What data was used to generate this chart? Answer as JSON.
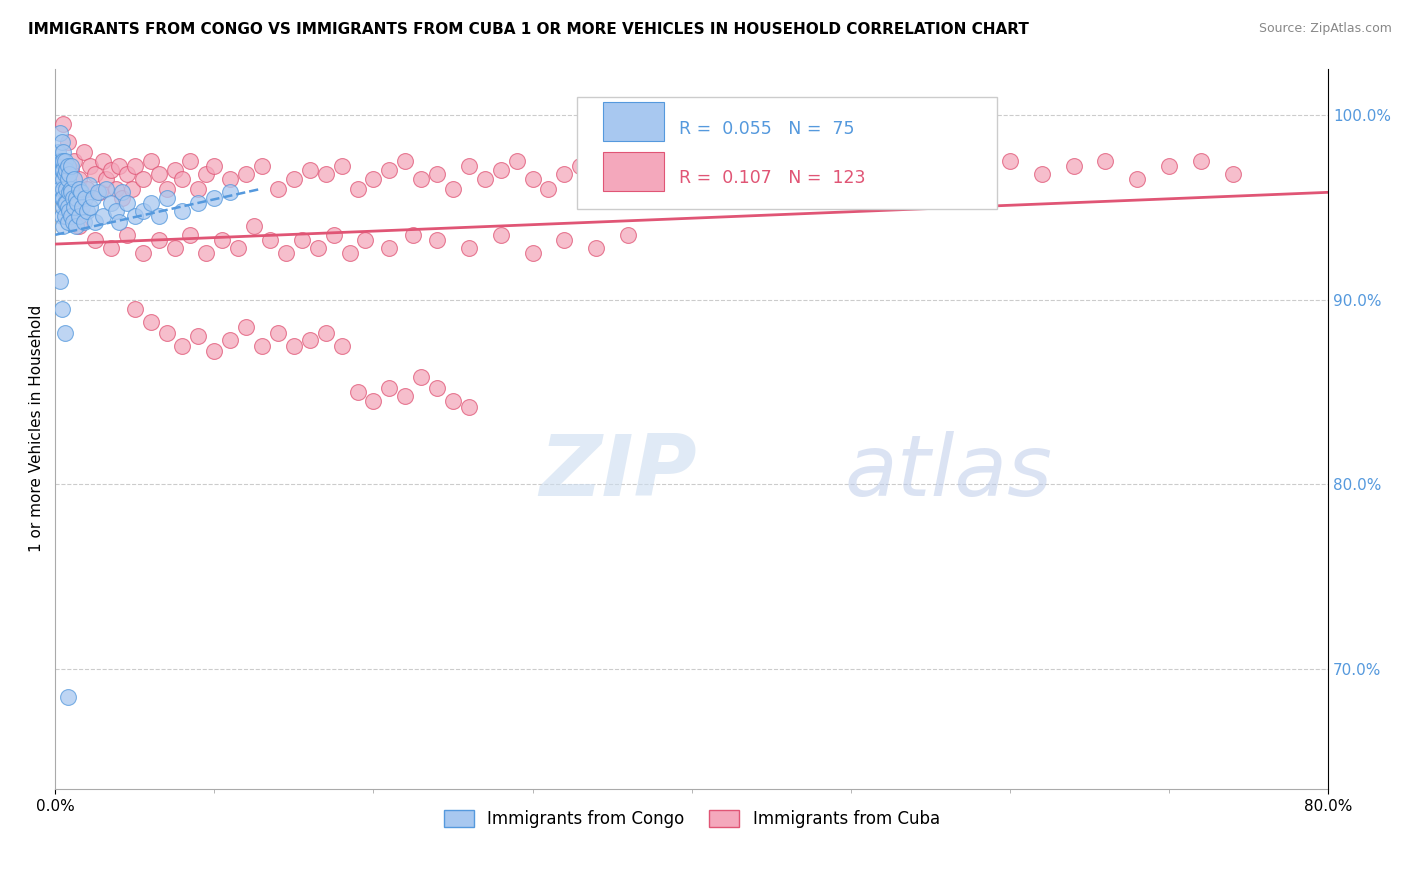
{
  "title": "IMMIGRANTS FROM CONGO VS IMMIGRANTS FROM CUBA 1 OR MORE VEHICLES IN HOUSEHOLD CORRELATION CHART",
  "source": "Source: ZipAtlas.com",
  "ylabel": "1 or more Vehicles in Household",
  "xlim": [
    0.0,
    0.8
  ],
  "ylim": [
    0.635,
    1.025
  ],
  "y_ticks_right": [
    0.7,
    0.8,
    0.9,
    1.0
  ],
  "y_tick_labels_right": [
    "70.0%",
    "80.0%",
    "90.0%",
    "100.0%"
  ],
  "grid_color": "#cccccc",
  "background_color": "#ffffff",
  "legend_blue_label": "Immigrants from Congo",
  "legend_pink_label": "Immigrants from Cuba",
  "R_blue": 0.055,
  "N_blue": 75,
  "R_pink": 0.107,
  "N_pink": 123,
  "blue_color": "#a8c8f0",
  "pink_color": "#f4a8bc",
  "blue_line_color": "#5599dd",
  "pink_line_color": "#e05575",
  "watermark_zip": "ZIP",
  "watermark_atlas": "atlas",
  "congo_x": [
    0.002,
    0.002,
    0.003,
    0.003,
    0.003,
    0.004,
    0.004,
    0.004,
    0.004,
    0.004,
    0.005,
    0.005,
    0.005,
    0.005,
    0.005,
    0.005,
    0.005,
    0.005,
    0.006,
    0.006,
    0.006,
    0.006,
    0.007,
    0.007,
    0.007,
    0.008,
    0.008,
    0.008,
    0.008,
    0.009,
    0.009,
    0.009,
    0.01,
    0.01,
    0.01,
    0.01,
    0.011,
    0.011,
    0.012,
    0.012,
    0.013,
    0.013,
    0.014,
    0.015,
    0.015,
    0.016,
    0.017,
    0.018,
    0.019,
    0.02,
    0.021,
    0.022,
    0.024,
    0.025,
    0.027,
    0.03,
    0.032,
    0.035,
    0.038,
    0.04,
    0.042,
    0.045,
    0.05,
    0.055,
    0.06,
    0.065,
    0.07,
    0.08,
    0.09,
    0.1,
    0.11,
    0.003,
    0.004,
    0.006,
    0.008
  ],
  "congo_y": [
    0.98,
    0.965,
    0.975,
    0.96,
    0.99,
    0.97,
    0.955,
    0.985,
    0.945,
    0.975,
    0.98,
    0.965,
    0.95,
    0.975,
    0.96,
    0.94,
    0.97,
    0.955,
    0.968,
    0.952,
    0.945,
    0.975,
    0.96,
    0.97,
    0.952,
    0.965,
    0.95,
    0.972,
    0.942,
    0.958,
    0.948,
    0.968,
    0.96,
    0.945,
    0.972,
    0.958,
    0.955,
    0.942,
    0.965,
    0.95,
    0.955,
    0.94,
    0.952,
    0.96,
    0.945,
    0.958,
    0.95,
    0.942,
    0.955,
    0.948,
    0.962,
    0.95,
    0.955,
    0.942,
    0.958,
    0.945,
    0.96,
    0.952,
    0.948,
    0.942,
    0.958,
    0.952,
    0.945,
    0.948,
    0.952,
    0.945,
    0.955,
    0.948,
    0.952,
    0.955,
    0.958,
    0.91,
    0.895,
    0.882,
    0.685
  ],
  "cuba_x": [
    0.005,
    0.008,
    0.01,
    0.012,
    0.015,
    0.018,
    0.02,
    0.022,
    0.025,
    0.028,
    0.03,
    0.032,
    0.035,
    0.038,
    0.04,
    0.042,
    0.045,
    0.048,
    0.05,
    0.055,
    0.06,
    0.065,
    0.07,
    0.075,
    0.08,
    0.085,
    0.09,
    0.095,
    0.1,
    0.11,
    0.12,
    0.13,
    0.14,
    0.15,
    0.16,
    0.17,
    0.18,
    0.19,
    0.2,
    0.21,
    0.22,
    0.23,
    0.24,
    0.25,
    0.26,
    0.27,
    0.28,
    0.29,
    0.3,
    0.31,
    0.32,
    0.33,
    0.34,
    0.36,
    0.38,
    0.4,
    0.42,
    0.44,
    0.46,
    0.48,
    0.5,
    0.52,
    0.54,
    0.56,
    0.58,
    0.6,
    0.62,
    0.64,
    0.66,
    0.68,
    0.7,
    0.72,
    0.74,
    0.015,
    0.025,
    0.035,
    0.045,
    0.055,
    0.065,
    0.075,
    0.085,
    0.095,
    0.105,
    0.115,
    0.125,
    0.135,
    0.145,
    0.155,
    0.165,
    0.175,
    0.185,
    0.195,
    0.21,
    0.225,
    0.24,
    0.26,
    0.28,
    0.3,
    0.32,
    0.34,
    0.36,
    0.05,
    0.06,
    0.07,
    0.08,
    0.09,
    0.1,
    0.11,
    0.12,
    0.13,
    0.14,
    0.15,
    0.16,
    0.17,
    0.18,
    0.19,
    0.2,
    0.21,
    0.22,
    0.23,
    0.24,
    0.25,
    0.26
  ],
  "cuba_y": [
    0.995,
    0.985,
    0.97,
    0.975,
    0.965,
    0.98,
    0.96,
    0.972,
    0.968,
    0.958,
    0.975,
    0.965,
    0.97,
    0.96,
    0.972,
    0.955,
    0.968,
    0.96,
    0.972,
    0.965,
    0.975,
    0.968,
    0.96,
    0.97,
    0.965,
    0.975,
    0.96,
    0.968,
    0.972,
    0.965,
    0.968,
    0.972,
    0.96,
    0.965,
    0.97,
    0.968,
    0.972,
    0.96,
    0.965,
    0.97,
    0.975,
    0.965,
    0.968,
    0.96,
    0.972,
    0.965,
    0.97,
    0.975,
    0.965,
    0.96,
    0.968,
    0.972,
    0.965,
    0.968,
    0.972,
    0.975,
    0.965,
    0.968,
    0.972,
    0.975,
    0.968,
    0.972,
    0.975,
    0.968,
    0.972,
    0.975,
    0.968,
    0.972,
    0.975,
    0.965,
    0.972,
    0.975,
    0.968,
    0.94,
    0.932,
    0.928,
    0.935,
    0.925,
    0.932,
    0.928,
    0.935,
    0.925,
    0.932,
    0.928,
    0.94,
    0.932,
    0.925,
    0.932,
    0.928,
    0.935,
    0.925,
    0.932,
    0.928,
    0.935,
    0.932,
    0.928,
    0.935,
    0.925,
    0.932,
    0.928,
    0.935,
    0.895,
    0.888,
    0.882,
    0.875,
    0.88,
    0.872,
    0.878,
    0.885,
    0.875,
    0.882,
    0.875,
    0.878,
    0.882,
    0.875,
    0.85,
    0.845,
    0.852,
    0.848,
    0.858,
    0.852,
    0.845,
    0.842
  ]
}
